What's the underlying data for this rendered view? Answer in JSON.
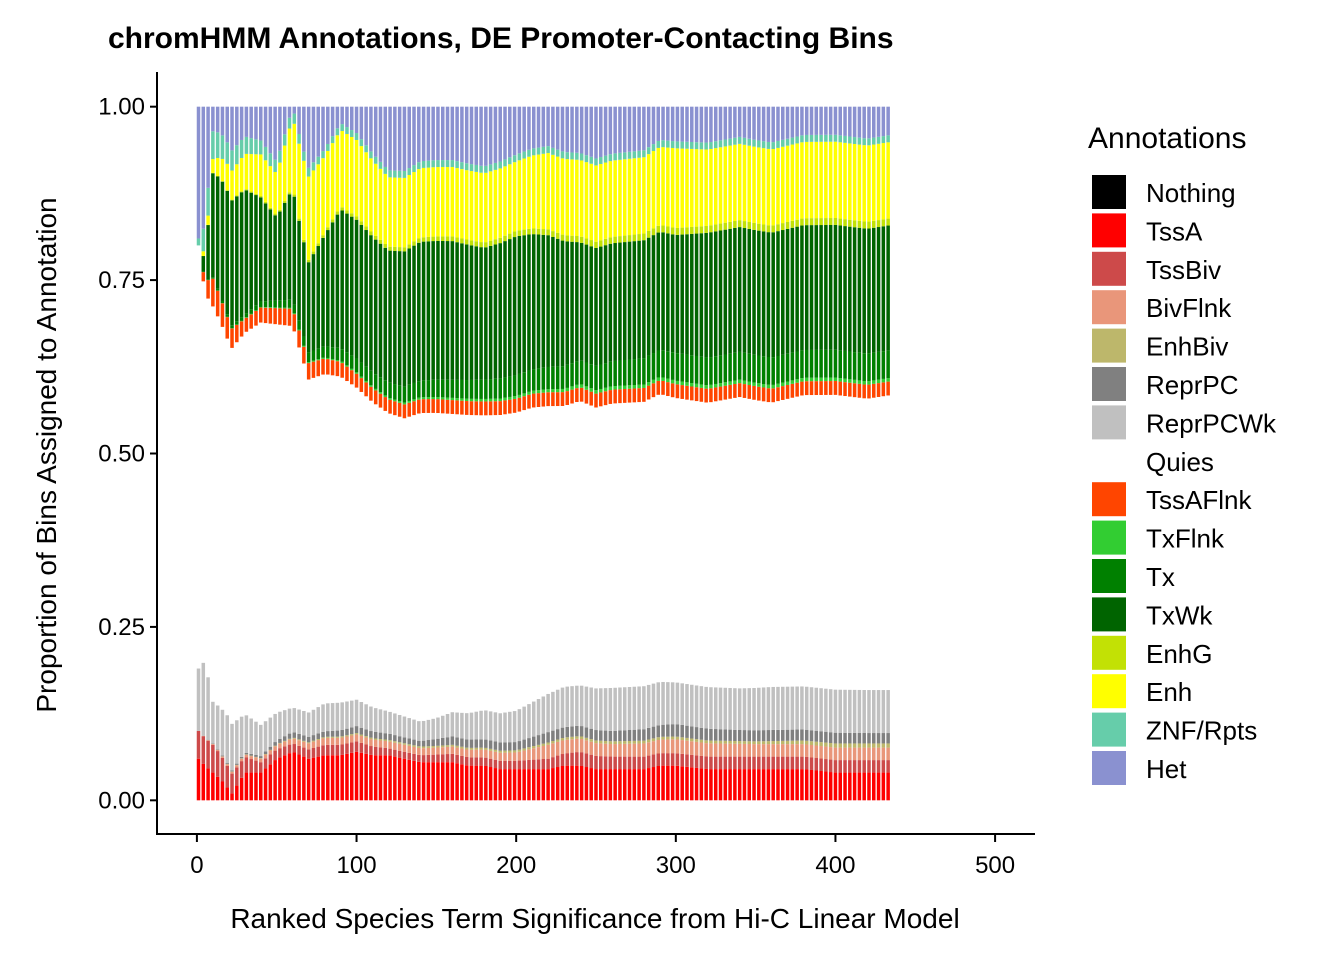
{
  "chart_data": {
    "type": "bar",
    "stacked": true,
    "title": "chromHMM Annotations, DE Promoter-Contacting Bins",
    "xlabel": "Ranked Species Term Significance from Hi-C Linear Model",
    "ylabel": "Proportion of Bins Assigned to Annotation",
    "xlim": [
      -25,
      525
    ],
    "ylim": [
      -0.05,
      1.05
    ],
    "x_ticks": [
      0,
      100,
      200,
      300,
      400,
      500
    ],
    "x_tick_labels": [
      "0",
      "100",
      "200",
      "300",
      "400",
      "500"
    ],
    "y_ticks": [
      0,
      0.25,
      0.5,
      0.75,
      1.0
    ],
    "y_tick_labels": [
      "0.00",
      "0.25",
      "0.50",
      "0.75",
      "1.00"
    ],
    "grid": false,
    "legend_position": "right",
    "legend_title": "Annotations",
    "x_min": 1,
    "x_max": 434,
    "x_step": 3,
    "bar_width": 2.2,
    "series": [
      {
        "name": "Nothing",
        "color": "#000000",
        "x": [
          1,
          434
        ],
        "values": [
          0,
          0
        ]
      },
      {
        "name": "TssA",
        "color": "#FF0000",
        "x": [
          1,
          5,
          15,
          22,
          30,
          40,
          50,
          60,
          70,
          80,
          90,
          100,
          110,
          120,
          130,
          140,
          150,
          160,
          170,
          180,
          190,
          200,
          210,
          220,
          230,
          240,
          250,
          260,
          270,
          280,
          290,
          300,
          320,
          340,
          360,
          380,
          400,
          420,
          434
        ],
        "values": [
          0.06,
          0.05,
          0.03,
          0.01,
          0.04,
          0.04,
          0.06,
          0.07,
          0.06,
          0.065,
          0.065,
          0.07,
          0.065,
          0.065,
          0.06,
          0.055,
          0.055,
          0.055,
          0.05,
          0.05,
          0.045,
          0.045,
          0.045,
          0.045,
          0.05,
          0.05,
          0.045,
          0.045,
          0.045,
          0.045,
          0.05,
          0.05,
          0.045,
          0.045,
          0.045,
          0.045,
          0.04,
          0.04,
          0.04
        ]
      },
      {
        "name": "TssBiv",
        "color": "#CD4A4A",
        "x": [
          1,
          10,
          20,
          40,
          60,
          80,
          100,
          120,
          140,
          160,
          180,
          200,
          220,
          240,
          260,
          280,
          300,
          340,
          380,
          420,
          434
        ],
        "values": [
          0.04,
          0.04,
          0.03,
          0.015,
          0.012,
          0.015,
          0.015,
          0.01,
          0.01,
          0.012,
          0.012,
          0.012,
          0.015,
          0.02,
          0.018,
          0.018,
          0.018,
          0.018,
          0.018,
          0.018,
          0.018
        ]
      },
      {
        "name": "BivFlnk",
        "color": "#E9967A",
        "x": [
          1,
          40,
          80,
          100,
          150,
          200,
          220,
          260,
          300,
          350,
          400,
          434
        ],
        "values": [
          0.0,
          0.005,
          0.01,
          0.01,
          0.01,
          0.012,
          0.02,
          0.018,
          0.02,
          0.018,
          0.018,
          0.018
        ]
      },
      {
        "name": "EnhBiv",
        "color": "#BDB76B",
        "x": [
          1,
          100,
          200,
          260,
          300,
          350,
          400,
          434
        ],
        "values": [
          0.0,
          0.002,
          0.003,
          0.004,
          0.004,
          0.004,
          0.006,
          0.006
        ]
      },
      {
        "name": "ReprPC",
        "color": "#808080",
        "x": [
          1,
          40,
          60,
          80,
          100,
          140,
          160,
          200,
          220,
          260,
          300,
          340,
          380,
          420,
          434
        ],
        "values": [
          0.0,
          0.003,
          0.008,
          0.008,
          0.01,
          0.008,
          0.012,
          0.012,
          0.015,
          0.015,
          0.018,
          0.016,
          0.016,
          0.015,
          0.015
        ]
      },
      {
        "name": "ReprPCWk",
        "color": "#C0C0C0",
        "x": [
          1,
          5,
          10,
          20,
          30,
          40,
          50,
          60,
          70,
          80,
          90,
          100,
          110,
          120,
          130,
          140,
          150,
          160,
          170,
          180,
          190,
          200,
          210,
          220,
          230,
          240,
          250,
          260,
          270,
          280,
          290,
          300,
          320,
          340,
          360,
          380,
          400,
          420,
          434
        ],
        "values": [
          0.09,
          0.11,
          0.06,
          0.07,
          0.055,
          0.045,
          0.04,
          0.035,
          0.035,
          0.04,
          0.04,
          0.038,
          0.035,
          0.032,
          0.03,
          0.028,
          0.03,
          0.035,
          0.038,
          0.042,
          0.042,
          0.045,
          0.05,
          0.055,
          0.058,
          0.058,
          0.06,
          0.062,
          0.062,
          0.062,
          0.062,
          0.06,
          0.06,
          0.06,
          0.062,
          0.062,
          0.062,
          0.062,
          0.062
        ]
      },
      {
        "name": "Quies",
        "color": "#FFFFFF",
        "x": [
          1,
          5,
          10,
          20,
          30,
          40,
          50,
          60,
          70,
          80,
          90,
          100,
          110,
          120,
          130,
          140,
          150,
          160,
          170,
          180,
          190,
          200,
          210,
          220,
          230,
          240,
          250,
          260,
          270,
          280,
          290,
          300,
          320,
          340,
          360,
          380,
          400,
          420,
          434
        ],
        "values": [
          0.61,
          0.53,
          0.57,
          0.54,
          0.55,
          0.58,
          0.56,
          0.55,
          0.48,
          0.475,
          0.47,
          0.45,
          0.44,
          0.43,
          0.43,
          0.445,
          0.44,
          0.43,
          0.43,
          0.425,
          0.43,
          0.43,
          0.425,
          0.415,
          0.405,
          0.41,
          0.405,
          0.41,
          0.41,
          0.41,
          0.415,
          0.41,
          0.41,
          0.42,
          0.41,
          0.42,
          0.425,
          0.42,
          0.425
        ]
      },
      {
        "name": "TssAFlnk",
        "color": "#FF4500",
        "x": [
          1,
          10,
          30,
          60,
          100,
          150,
          200,
          250,
          300,
          350,
          400,
          434
        ],
        "values": [
          0.0,
          0.04,
          0.02,
          0.025,
          0.02,
          0.02,
          0.02,
          0.02,
          0.02,
          0.02,
          0.02,
          0.02
        ]
      },
      {
        "name": "TxFlnk",
        "color": "#32CD32",
        "x": [
          1,
          100,
          200,
          250,
          300,
          350,
          400,
          434
        ],
        "values": [
          0.0,
          0.002,
          0.004,
          0.005,
          0.005,
          0.005,
          0.005,
          0.005
        ]
      },
      {
        "name": "Tx",
        "color": "#008000",
        "x": [
          1,
          50,
          100,
          150,
          200,
          250,
          300,
          350,
          400,
          434
        ],
        "values": [
          0.0,
          0.01,
          0.02,
          0.025,
          0.03,
          0.035,
          0.04,
          0.04,
          0.04,
          0.04
        ]
      },
      {
        "name": "TxWk",
        "color": "#006400",
        "x": [
          1,
          5,
          10,
          15,
          20,
          30,
          40,
          50,
          60,
          65,
          70,
          80,
          90,
          100,
          120,
          140,
          160,
          180,
          200,
          220,
          240,
          260,
          280,
          300,
          320,
          340,
          360,
          380,
          400,
          420,
          434
        ],
        "values": [
          0.0,
          0.03,
          0.15,
          0.17,
          0.18,
          0.18,
          0.15,
          0.12,
          0.16,
          0.14,
          0.13,
          0.16,
          0.2,
          0.2,
          0.19,
          0.2,
          0.2,
          0.19,
          0.2,
          0.19,
          0.17,
          0.17,
          0.17,
          0.17,
          0.18,
          0.18,
          0.18,
          0.18,
          0.18,
          0.18,
          0.18
        ]
      },
      {
        "name": "EnhG",
        "color": "#C2E105",
        "x": [
          1,
          100,
          200,
          300,
          400,
          434
        ],
        "values": [
          0.0,
          0.005,
          0.008,
          0.01,
          0.01,
          0.01
        ]
      },
      {
        "name": "Enh",
        "color": "#FFFF00",
        "x": [
          1,
          10,
          20,
          30,
          40,
          50,
          60,
          70,
          80,
          90,
          100,
          120,
          140,
          160,
          180,
          200,
          220,
          240,
          260,
          280,
          300,
          320,
          340,
          360,
          380,
          400,
          420,
          434
        ],
        "values": [
          0.0,
          0.02,
          0.04,
          0.05,
          0.06,
          0.06,
          0.1,
          0.12,
          0.11,
          0.11,
          0.11,
          0.1,
          0.1,
          0.1,
          0.1,
          0.1,
          0.11,
          0.11,
          0.11,
          0.11,
          0.115,
          0.11,
          0.11,
          0.11,
          0.11,
          0.11,
          0.11,
          0.11
        ]
      },
      {
        "name": "ZNF/Rpts",
        "color": "#66CDAA",
        "x": [
          1,
          5,
          10,
          20,
          40,
          60,
          80,
          100,
          150,
          200,
          300,
          400,
          434
        ],
        "values": [
          0.01,
          0.04,
          0.04,
          0.03,
          0.02,
          0.015,
          0.01,
          0.01,
          0.01,
          0.01,
          0.01,
          0.01,
          0.01
        ]
      },
      {
        "name": "Het",
        "color": "#8A91D0",
        "x": [
          1,
          434
        ],
        "values": [
          0.0,
          0.0
        ],
        "fills_remainder": true
      }
    ]
  }
}
